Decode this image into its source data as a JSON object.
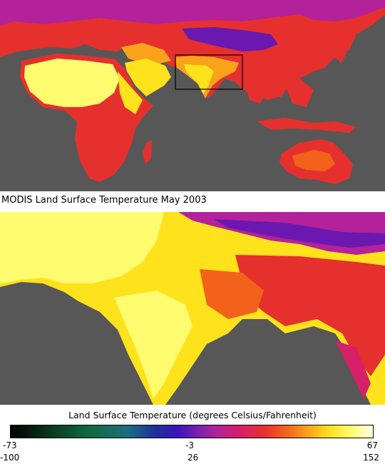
{
  "title": "MODIS Land Surface Temperature May 2003",
  "legend": {
    "title": "Land Surface Temperature (degrees Celsius/Fahrenheit)",
    "celsius": {
      "min": "-73",
      "mid": "-3",
      "max": "67"
    },
    "fahrenheit": {
      "min": "-100",
      "mid": "26",
      "max": "152"
    }
  },
  "colors": {
    "ocean": "#575757",
    "cold": "#5b1aa8",
    "cool": "#b3229a",
    "warm": "#e6302e",
    "hot": "#f9a21a",
    "hottest": "#ffff90",
    "inset_box": "#000000"
  }
}
